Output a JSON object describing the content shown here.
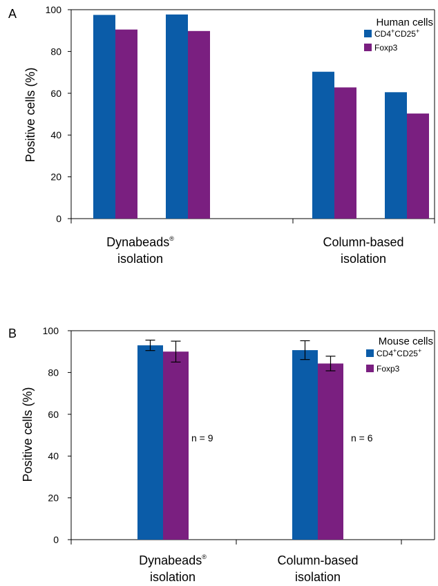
{
  "chart_data": [
    {
      "type": "bar",
      "panel_label": "A",
      "ylabel": "Positive cells (%)",
      "ylim": [
        0,
        100
      ],
      "yticks": [
        "0",
        "20",
        "40",
        "60",
        "80",
        "100"
      ],
      "legend": {
        "title": "Human cells",
        "placement": "top-right",
        "items": [
          {
            "main": "CD4",
            "sup1": "+",
            "mid": "CD25",
            "sup2": "+"
          },
          {
            "main": "Foxp3",
            "sup1": "",
            "mid": "",
            "sup2": ""
          }
        ]
      },
      "categories": [
        {
          "line1": "Dynabeads",
          "sup": "®",
          "line2": "isolation"
        },
        {
          "line1": "Column-based",
          "sup": "",
          "line2": "isolation"
        }
      ],
      "series": [
        {
          "name": "CD4+CD25+",
          "color": "#0b5ca8"
        },
        {
          "name": "Foxp3",
          "color": "#7a1f80"
        }
      ],
      "groups": [
        {
          "category": 0,
          "values": [
            97.5,
            90.5
          ]
        },
        {
          "category": 0,
          "values": [
            97.7,
            89.8
          ]
        },
        {
          "category": 1,
          "values": [
            70.3,
            62.8
          ]
        },
        {
          "category": 1,
          "values": [
            60.5,
            50.3
          ]
        }
      ]
    },
    {
      "type": "bar",
      "panel_label": "B",
      "ylabel": "Positive cells (%)",
      "ylim": [
        0,
        100
      ],
      "yticks": [
        "0",
        "20",
        "40",
        "60",
        "80",
        "100"
      ],
      "legend": {
        "title": "Mouse cells",
        "placement": "top-right",
        "items": [
          {
            "main": "CD4",
            "sup1": "+",
            "mid": "CD25",
            "sup2": "+"
          },
          {
            "main": "Foxp3",
            "sup1": "",
            "mid": "",
            "sup2": ""
          }
        ]
      },
      "categories": [
        {
          "line1": "Dynabeads",
          "sup": "®",
          "line2": "isolation"
        },
        {
          "line1": "Column-based",
          "sup": "",
          "line2": "isolation"
        }
      ],
      "series": [
        {
          "name": "CD4+CD25+",
          "color": "#0b5ca8"
        },
        {
          "name": "Foxp3",
          "color": "#7a1f80"
        }
      ],
      "groups": [
        {
          "category": 0,
          "values": [
            93.0,
            90.0
          ],
          "errors": [
            2.5,
            5.0
          ]
        },
        {
          "category": 1,
          "values": [
            90.7,
            84.3
          ],
          "errors": [
            4.5,
            3.5
          ]
        }
      ],
      "annotations": [
        "n = 9",
        "n = 6"
      ],
      "colors": {
        "cd4": "#0b5ca8",
        "foxp3": "#7a1f80"
      }
    }
  ]
}
